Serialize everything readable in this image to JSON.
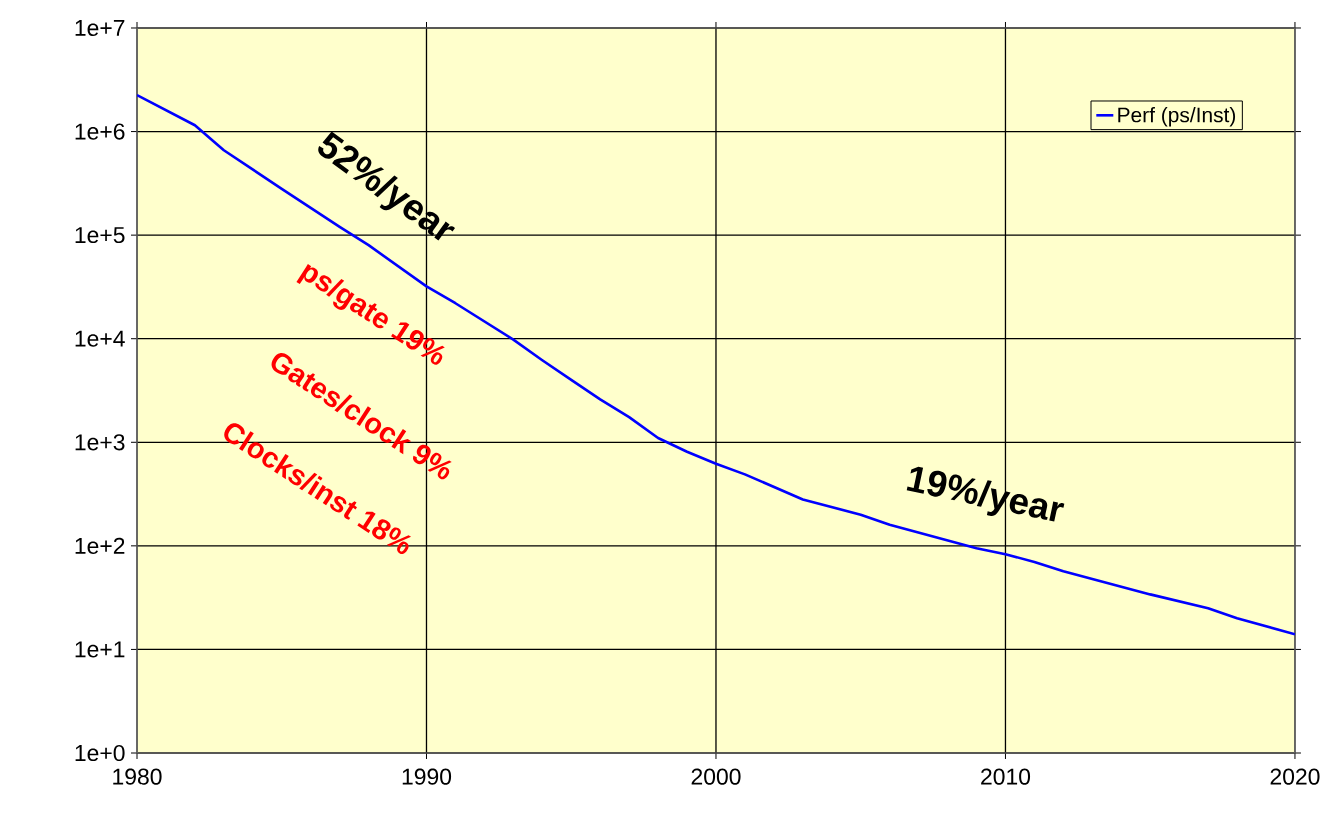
{
  "chart_data": {
    "type": "line",
    "log": "y",
    "grid": true,
    "legend": "top right",
    "marker": "none",
    "line_style": "solid",
    "xlim": [
      1980,
      2020
    ],
    "xticks": [
      1980,
      1990,
      2000,
      2010,
      2020
    ],
    "ylim": [
      1,
      10000000
    ],
    "yticks": [
      {
        "value": 1,
        "label": "1e+0"
      },
      {
        "value": 10,
        "label": "1e+1"
      },
      {
        "value": 100,
        "label": "1e+2"
      },
      {
        "value": 1000,
        "label": "1e+3"
      },
      {
        "value": 10000,
        "label": "1e+4"
      },
      {
        "value": 100000,
        "label": "1e+5"
      },
      {
        "value": 1000000,
        "label": "1e+6"
      },
      {
        "value": 10000000,
        "label": "1e+7"
      }
    ],
    "series": [
      {
        "name": "Perf (ps/Inst)",
        "color": "#0000ff",
        "x": [
          1980,
          1982,
          1983,
          1985,
          1987,
          1988,
          1990,
          1991,
          1993,
          1994,
          1995,
          1996,
          1997,
          1998,
          1999,
          2000,
          2001,
          2003,
          2005,
          2006,
          2009,
          2010,
          2011,
          2012,
          2015,
          2017,
          2018,
          2020
        ],
        "values": [
          2250000,
          1150000,
          660000,
          280000,
          120000,
          80000,
          32000,
          22000,
          9800,
          6200,
          4000,
          2600,
          1750,
          1100,
          810,
          620,
          490,
          280,
          200,
          160,
          95,
          83,
          70,
          57,
          34,
          25,
          20,
          14
        ]
      }
    ],
    "annotations": [
      "52%/year",
      "ps/gate 19%",
      "Gates/clock 9%",
      "Clocks/inst 18%",
      "19%/year"
    ]
  }
}
